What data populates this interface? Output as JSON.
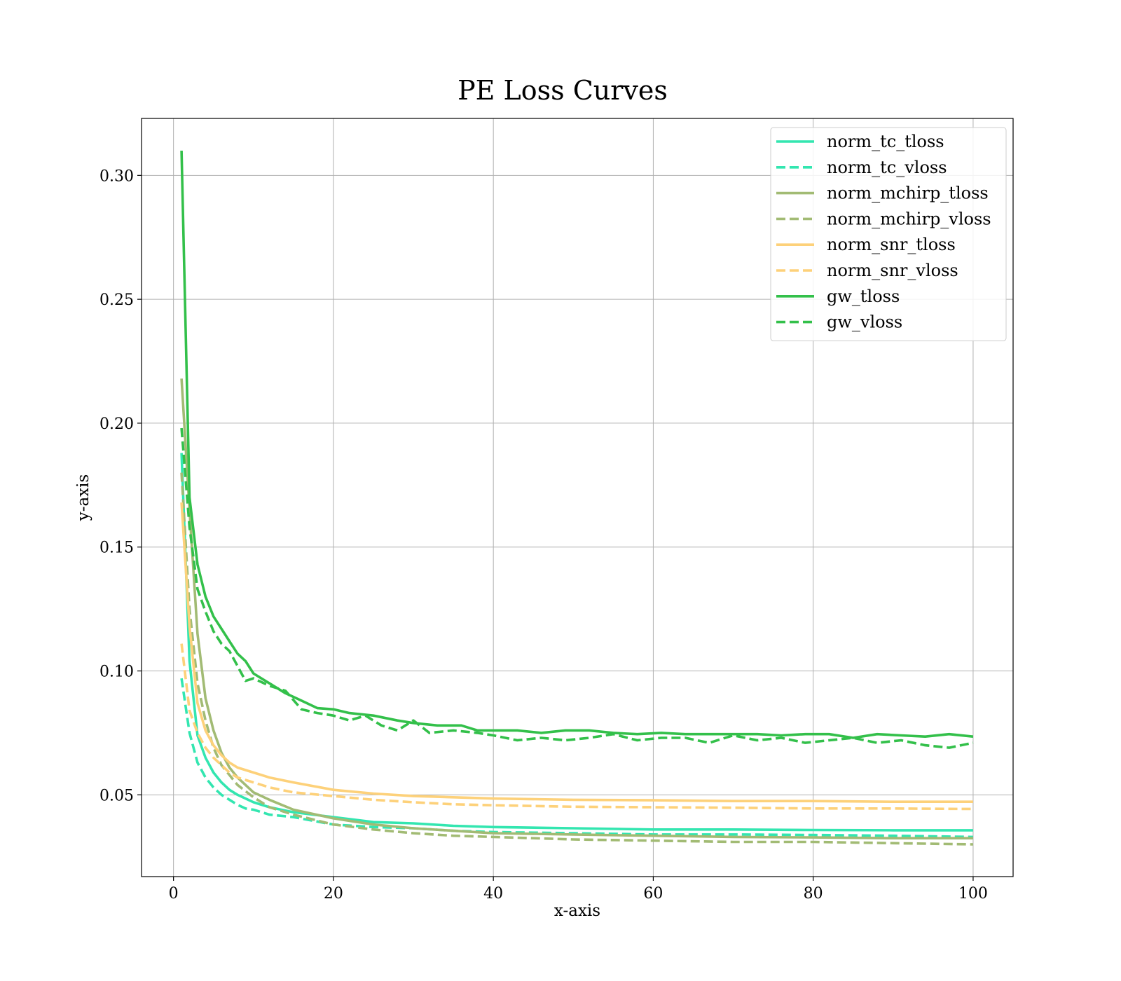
{
  "chart_data": {
    "type": "line",
    "title": "PE Loss Curves",
    "xlabel": "x-axis",
    "ylabel": "y-axis",
    "xlim": [
      -4,
      105
    ],
    "ylim": [
      0.017,
      0.323
    ],
    "x_ticks": [
      0,
      20,
      40,
      60,
      80,
      100
    ],
    "x_tick_labels": [
      "0",
      "20",
      "40",
      "60",
      "80",
      "100"
    ],
    "y_ticks": [
      0.05,
      0.1,
      0.15,
      0.2,
      0.25,
      0.3
    ],
    "y_tick_labels": [
      "0.05",
      "0.10",
      "0.15",
      "0.20",
      "0.25",
      "0.30"
    ],
    "grid": true,
    "legend_position": "top-right",
    "series": [
      {
        "name": "norm_tc_tloss",
        "color": "#33e6b0",
        "dash": "solid",
        "points": [
          [
            1,
            0.188
          ],
          [
            2,
            0.104
          ],
          [
            3,
            0.074
          ],
          [
            4,
            0.065
          ],
          [
            5,
            0.059
          ],
          [
            6,
            0.055
          ],
          [
            7,
            0.052
          ],
          [
            8,
            0.05
          ],
          [
            10,
            0.047
          ],
          [
            12,
            0.045
          ],
          [
            15,
            0.043
          ],
          [
            20,
            0.041
          ],
          [
            25,
            0.039
          ],
          [
            30,
            0.0385
          ],
          [
            35,
            0.0375
          ],
          [
            40,
            0.037
          ],
          [
            50,
            0.0365
          ],
          [
            60,
            0.036
          ],
          [
            70,
            0.036
          ],
          [
            80,
            0.0358
          ],
          [
            90,
            0.0357
          ],
          [
            100,
            0.0357
          ]
        ]
      },
      {
        "name": "norm_tc_vloss",
        "color": "#33e6b0",
        "dash": "dashed",
        "points": [
          [
            1,
            0.097
          ],
          [
            2,
            0.075
          ],
          [
            3,
            0.063
          ],
          [
            4,
            0.057
          ],
          [
            5,
            0.053
          ],
          [
            6,
            0.05
          ],
          [
            7,
            0.048
          ],
          [
            8,
            0.046
          ],
          [
            9,
            0.0445
          ],
          [
            10,
            0.044
          ],
          [
            12,
            0.042
          ],
          [
            15,
            0.041
          ],
          [
            20,
            0.038
          ],
          [
            25,
            0.037
          ],
          [
            30,
            0.0365
          ],
          [
            35,
            0.0355
          ],
          [
            40,
            0.035
          ],
          [
            50,
            0.0345
          ],
          [
            60,
            0.034
          ],
          [
            70,
            0.034
          ],
          [
            80,
            0.0338
          ],
          [
            90,
            0.0335
          ],
          [
            100,
            0.033
          ]
        ]
      },
      {
        "name": "norm_mchirp_tloss",
        "color": "#a2bb74",
        "dash": "solid",
        "points": [
          [
            1,
            0.218
          ],
          [
            2,
            0.165
          ],
          [
            3,
            0.115
          ],
          [
            4,
            0.089
          ],
          [
            5,
            0.076
          ],
          [
            6,
            0.067
          ],
          [
            7,
            0.061
          ],
          [
            8,
            0.057
          ],
          [
            10,
            0.051
          ],
          [
            12,
            0.048
          ],
          [
            15,
            0.044
          ],
          [
            20,
            0.0405
          ],
          [
            25,
            0.038
          ],
          [
            30,
            0.0365
          ],
          [
            35,
            0.0355
          ],
          [
            40,
            0.0345
          ],
          [
            50,
            0.034
          ],
          [
            60,
            0.0335
          ],
          [
            70,
            0.033
          ],
          [
            80,
            0.0328
          ],
          [
            90,
            0.0325
          ],
          [
            100,
            0.0325
          ]
        ]
      },
      {
        "name": "norm_mchirp_vloss",
        "color": "#a2bb74",
        "dash": "dashed",
        "points": [
          [
            1,
            0.18
          ],
          [
            2,
            0.125
          ],
          [
            3,
            0.095
          ],
          [
            4,
            0.08
          ],
          [
            5,
            0.069
          ],
          [
            6,
            0.062
          ],
          [
            7,
            0.058
          ],
          [
            8,
            0.054
          ],
          [
            10,
            0.049
          ],
          [
            12,
            0.045
          ],
          [
            15,
            0.042
          ],
          [
            20,
            0.038
          ],
          [
            25,
            0.036
          ],
          [
            30,
            0.0345
          ],
          [
            35,
            0.0335
          ],
          [
            40,
            0.033
          ],
          [
            50,
            0.032
          ],
          [
            60,
            0.0315
          ],
          [
            70,
            0.031
          ],
          [
            80,
            0.031
          ],
          [
            90,
            0.0305
          ],
          [
            100,
            0.03
          ]
        ]
      },
      {
        "name": "norm_snr_tloss",
        "color": "#fdd17a",
        "dash": "solid",
        "points": [
          [
            1,
            0.168
          ],
          [
            2,
            0.118
          ],
          [
            3,
            0.087
          ],
          [
            4,
            0.076
          ],
          [
            5,
            0.07
          ],
          [
            6,
            0.066
          ],
          [
            7,
            0.063
          ],
          [
            8,
            0.061
          ],
          [
            10,
            0.059
          ],
          [
            12,
            0.057
          ],
          [
            15,
            0.055
          ],
          [
            20,
            0.052
          ],
          [
            25,
            0.0505
          ],
          [
            30,
            0.0495
          ],
          [
            35,
            0.049
          ],
          [
            40,
            0.0485
          ],
          [
            50,
            0.048
          ],
          [
            60,
            0.0478
          ],
          [
            70,
            0.0475
          ],
          [
            80,
            0.0475
          ],
          [
            90,
            0.0472
          ],
          [
            100,
            0.0472
          ]
        ]
      },
      {
        "name": "norm_snr_vloss",
        "color": "#fdd17a",
        "dash": "dashed",
        "points": [
          [
            1,
            0.111
          ],
          [
            2,
            0.084
          ],
          [
            3,
            0.075
          ],
          [
            4,
            0.069
          ],
          [
            5,
            0.065
          ],
          [
            6,
            0.062
          ],
          [
            7,
            0.059
          ],
          [
            8,
            0.057
          ],
          [
            10,
            0.055
          ],
          [
            12,
            0.053
          ],
          [
            15,
            0.051
          ],
          [
            20,
            0.0495
          ],
          [
            25,
            0.048
          ],
          [
            30,
            0.047
          ],
          [
            35,
            0.0462
          ],
          [
            40,
            0.0458
          ],
          [
            50,
            0.0452
          ],
          [
            60,
            0.045
          ],
          [
            70,
            0.0448
          ],
          [
            80,
            0.0445
          ],
          [
            90,
            0.0445
          ],
          [
            100,
            0.0443
          ]
        ]
      },
      {
        "name": "gw_tloss",
        "color": "#33c04a",
        "dash": "solid",
        "points": [
          [
            1,
            0.31
          ],
          [
            2,
            0.17
          ],
          [
            3,
            0.143
          ],
          [
            4,
            0.13
          ],
          [
            5,
            0.122
          ],
          [
            6,
            0.117
          ],
          [
            7,
            0.112
          ],
          [
            8,
            0.107
          ],
          [
            9,
            0.104
          ],
          [
            10,
            0.099
          ],
          [
            12,
            0.095
          ],
          [
            14,
            0.091
          ],
          [
            16,
            0.088
          ],
          [
            18,
            0.085
          ],
          [
            20,
            0.0845
          ],
          [
            22,
            0.083
          ],
          [
            25,
            0.082
          ],
          [
            28,
            0.08
          ],
          [
            30,
            0.079
          ],
          [
            33,
            0.078
          ],
          [
            36,
            0.078
          ],
          [
            38,
            0.076
          ],
          [
            40,
            0.076
          ],
          [
            43,
            0.076
          ],
          [
            46,
            0.075
          ],
          [
            49,
            0.076
          ],
          [
            52,
            0.076
          ],
          [
            55,
            0.075
          ],
          [
            58,
            0.0745
          ],
          [
            61,
            0.075
          ],
          [
            64,
            0.0745
          ],
          [
            67,
            0.0745
          ],
          [
            70,
            0.0745
          ],
          [
            73,
            0.0745
          ],
          [
            76,
            0.074
          ],
          [
            79,
            0.0745
          ],
          [
            82,
            0.0745
          ],
          [
            85,
            0.073
          ],
          [
            88,
            0.0745
          ],
          [
            91,
            0.074
          ],
          [
            94,
            0.0735
          ],
          [
            97,
            0.0745
          ],
          [
            100,
            0.0735
          ]
        ]
      },
      {
        "name": "gw_vloss",
        "color": "#33c04a",
        "dash": "dashed",
        "points": [
          [
            1,
            0.198
          ],
          [
            2,
            0.158
          ],
          [
            3,
            0.133
          ],
          [
            4,
            0.124
          ],
          [
            5,
            0.116
          ],
          [
            6,
            0.111
          ],
          [
            7,
            0.108
          ],
          [
            8,
            0.102
          ],
          [
            9,
            0.096
          ],
          [
            10,
            0.097
          ],
          [
            12,
            0.094
          ],
          [
            14,
            0.092
          ],
          [
            16,
            0.0845
          ],
          [
            18,
            0.083
          ],
          [
            20,
            0.082
          ],
          [
            22,
            0.08
          ],
          [
            24,
            0.082
          ],
          [
            26,
            0.078
          ],
          [
            28,
            0.076
          ],
          [
            30,
            0.08
          ],
          [
            32,
            0.075
          ],
          [
            35,
            0.076
          ],
          [
            38,
            0.075
          ],
          [
            40,
            0.074
          ],
          [
            43,
            0.072
          ],
          [
            46,
            0.073
          ],
          [
            49,
            0.072
          ],
          [
            52,
            0.073
          ],
          [
            55,
            0.0745
          ],
          [
            58,
            0.072
          ],
          [
            61,
            0.073
          ],
          [
            64,
            0.073
          ],
          [
            67,
            0.071
          ],
          [
            70,
            0.074
          ],
          [
            73,
            0.072
          ],
          [
            76,
            0.073
          ],
          [
            79,
            0.071
          ],
          [
            82,
            0.072
          ],
          [
            85,
            0.073
          ],
          [
            88,
            0.071
          ],
          [
            91,
            0.072
          ],
          [
            94,
            0.07
          ],
          [
            97,
            0.069
          ],
          [
            100,
            0.071
          ]
        ]
      }
    ]
  }
}
